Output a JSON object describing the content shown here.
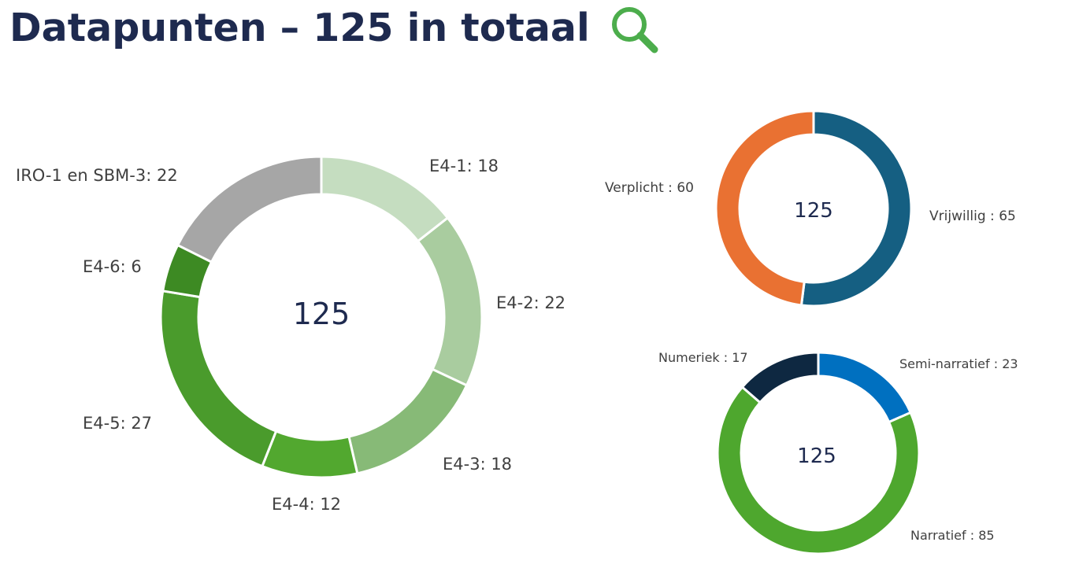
{
  "header": {
    "title": "Datapunten – 125 in totaal",
    "icon": "search-icon",
    "icon_color": "#4cad4c"
  },
  "chart_data": [
    {
      "type": "pie",
      "variant": "donut",
      "center_label": "125",
      "total": 125,
      "categories": [
        "E4-1",
        "E4-2",
        "E4-3",
        "E4-4",
        "E4-5",
        "E4-6",
        "IRO-1 en SBM-3"
      ],
      "values": [
        18,
        22,
        18,
        12,
        27,
        6,
        22
      ],
      "labels": [
        "E4-1:  18",
        "E4-2:  22",
        "E4-3:  18",
        "E4-4:  12",
        "E4-5:  27",
        "E4-6:  6",
        "IRO-1 en SBM-3:  22"
      ],
      "colors": [
        "#c5ddc0",
        "#a9cc9f",
        "#87ba77",
        "#52a82f",
        "#4a9b2c",
        "#3d8a23",
        "#a6a6a6"
      ]
    },
    {
      "type": "pie",
      "variant": "donut",
      "center_label": "125",
      "total": 125,
      "categories": [
        "Vrijwillig",
        "Verplicht"
      ],
      "values": [
        65,
        60
      ],
      "labels": [
        "Vrijwillig : 65",
        "Verplicht : 60"
      ],
      "colors": [
        "#155f82",
        "#e97132"
      ]
    },
    {
      "type": "pie",
      "variant": "donut",
      "center_label": "125",
      "total": 125,
      "categories": [
        "Semi-narratief",
        "Narratief",
        "Numeriek"
      ],
      "values": [
        23,
        85,
        17
      ],
      "labels": [
        "Semi-narratief : 23",
        "Narratief : 85",
        "Numeriek : 17"
      ],
      "colors": [
        "#0070c0",
        "#4ea72e",
        "#0e2841"
      ]
    }
  ]
}
